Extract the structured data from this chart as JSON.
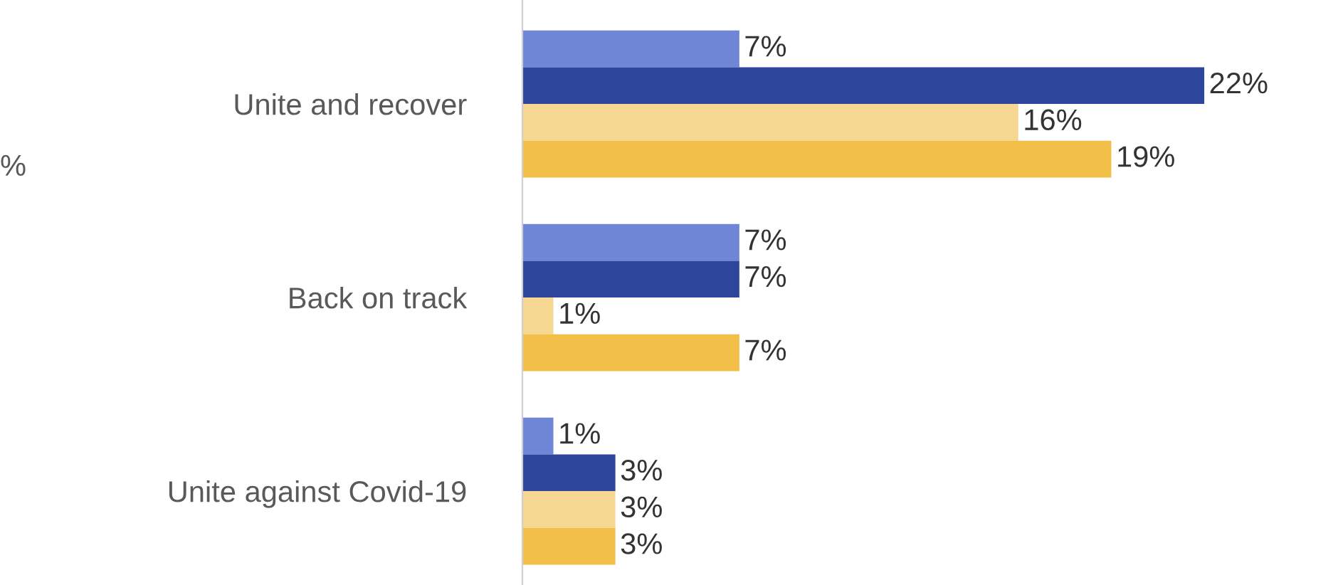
{
  "chart_data": {
    "type": "bar",
    "orientation": "horizontal",
    "categories": [
      "Unite and recover",
      "Back on track",
      "Unite against Covid-19"
    ],
    "series": [
      {
        "color": "#6f86d6",
        "values": [
          7,
          7,
          1
        ],
        "value_labels": [
          "7%",
          "7%",
          "1%"
        ]
      },
      {
        "color": "#2e459c",
        "values": [
          22,
          7,
          3
        ],
        "value_labels": [
          "22%",
          "7%",
          "3%"
        ]
      },
      {
        "color": "#f6d791",
        "values": [
          16,
          1,
          3
        ],
        "value_labels": [
          "16%",
          "1%",
          "3%"
        ]
      },
      {
        "color": "#f1bf47",
        "values": [
          19,
          7,
          3
        ],
        "value_labels": [
          "19%",
          "7%",
          "3%"
        ]
      }
    ],
    "annotations": [
      "%"
    ],
    "grid": false,
    "legend": false
  }
}
